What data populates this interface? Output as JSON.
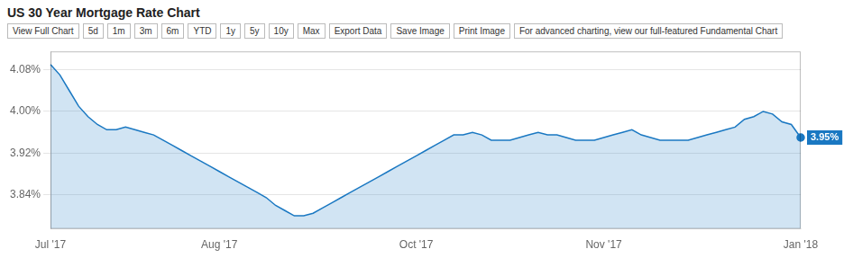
{
  "chart_data": {
    "type": "line",
    "title": "US 30 Year Mortgage Rate Chart",
    "annotations": [
      "View Full Chart",
      "5d",
      "1m",
      "3m",
      "6m",
      "YTD",
      "1y",
      "5y",
      "10y",
      "Max",
      "Export Data",
      "Save Image",
      "Print Image",
      "For advanced charting, view our full-featured Fundamental Chart"
    ],
    "categories": [
      "Jul '17",
      null,
      null,
      null,
      null,
      null,
      null,
      null,
      null,
      null,
      null,
      null,
      null,
      null,
      null,
      null,
      null,
      null,
      "Aug '17",
      null,
      null,
      null,
      null,
      null,
      null,
      null,
      null,
      null,
      null,
      null,
      null,
      null,
      null,
      null,
      null,
      null,
      null,
      null,
      null,
      "Oct '17",
      null,
      null,
      null,
      null,
      null,
      null,
      null,
      null,
      null,
      null,
      null,
      null,
      null,
      null,
      null,
      null,
      null,
      null,
      null,
      "Nov '17",
      null,
      null,
      null,
      null,
      null,
      null,
      null,
      null,
      null,
      null,
      null,
      null,
      null,
      null,
      null,
      null,
      null,
      null,
      null,
      null,
      "Jan '18"
    ],
    "values": [
      4.09,
      4.07,
      4.04,
      4.01,
      3.99,
      3.975,
      3.965,
      3.965,
      3.97,
      3.965,
      3.96,
      3.955,
      3.945,
      3.935,
      3.925,
      3.915,
      3.905,
      3.895,
      3.885,
      3.875,
      3.865,
      3.855,
      3.845,
      3.835,
      3.82,
      3.81,
      3.8,
      3.8,
      3.805,
      3.815,
      3.825,
      3.835,
      3.845,
      3.855,
      3.865,
      3.875,
      3.885,
      3.895,
      3.905,
      3.915,
      3.925,
      3.935,
      3.945,
      3.955,
      3.955,
      3.96,
      3.955,
      3.945,
      3.945,
      3.945,
      3.95,
      3.955,
      3.96,
      3.955,
      3.955,
      3.95,
      3.945,
      3.945,
      3.945,
      3.95,
      3.955,
      3.96,
      3.965,
      3.955,
      3.95,
      3.945,
      3.945,
      3.945,
      3.945,
      3.95,
      3.955,
      3.96,
      3.965,
      3.97,
      3.985,
      3.99,
      4.0,
      3.995,
      3.98,
      3.975,
      3.95
    ],
    "value_labels": [
      null,
      null,
      null,
      null,
      null,
      null,
      null,
      null,
      null,
      null,
      null,
      null,
      null,
      null,
      null,
      null,
      null,
      null,
      null,
      null,
      null,
      null,
      null,
      null,
      null,
      null,
      null,
      null,
      null,
      null,
      null,
      null,
      null,
      null,
      null,
      null,
      null,
      null,
      null,
      null,
      null,
      null,
      null,
      null,
      null,
      null,
      null,
      null,
      null,
      null,
      null,
      null,
      null,
      null,
      null,
      null,
      null,
      null,
      null,
      null,
      null,
      null,
      null,
      null,
      null,
      null,
      null,
      null,
      null,
      null,
      null,
      null,
      null,
      null,
      null,
      null,
      null,
      null,
      null,
      null,
      "3.95%"
    ],
    "color": "#1a78c2",
    "ylim": [
      3.775,
      4.115
    ],
    "yticks": [
      {
        "value": 3.84,
        "label": "3.84%"
      },
      {
        "value": 3.92,
        "label": "3.92%"
      },
      {
        "value": 4.0,
        "label": "4.00%"
      },
      {
        "value": 4.08,
        "label": "4.08%"
      }
    ],
    "grid": true
  }
}
